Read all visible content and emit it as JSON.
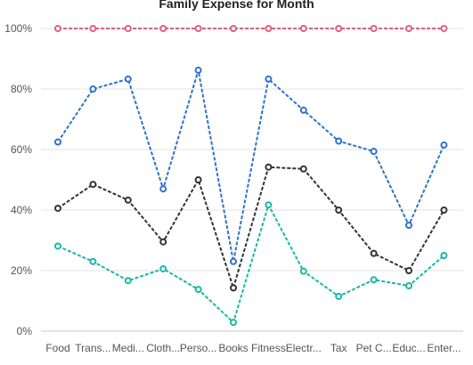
{
  "chart_data": {
    "type": "line",
    "title": "Family Expense for Month",
    "xlabel": "",
    "ylabel": "",
    "ylim": [
      0,
      100
    ],
    "yticks": [
      "0%",
      "20%",
      "40%",
      "60%",
      "80%",
      "100%"
    ],
    "categories": [
      "Food",
      "Trans...",
      "Medi...",
      "Cloth...",
      "Perso...",
      "Books",
      "Fitness",
      "Electr...",
      "Tax",
      "Pet C...",
      "Educ...",
      "Enter..."
    ],
    "grid": true,
    "legend": "none",
    "series": [
      {
        "color": "#e0607e",
        "values": [
          100,
          100,
          100,
          100,
          100,
          100,
          100,
          100,
          100,
          100,
          100,
          100
        ]
      },
      {
        "color": "#2f73c9",
        "values": [
          62.5,
          80,
          83.3,
          47,
          86.2,
          23,
          83.3,
          73,
          62.8,
          59.4,
          35,
          61.5
        ]
      },
      {
        "color": "#333333",
        "values": [
          40.6,
          48.5,
          43.3,
          29.5,
          50,
          14.3,
          54.2,
          53.6,
          40,
          25.7,
          20,
          40
        ]
      },
      {
        "color": "#17b8a6",
        "values": [
          28.1,
          23,
          16.7,
          20.6,
          13.8,
          2.9,
          41.7,
          19.8,
          11.5,
          17,
          15,
          25
        ]
      }
    ]
  }
}
